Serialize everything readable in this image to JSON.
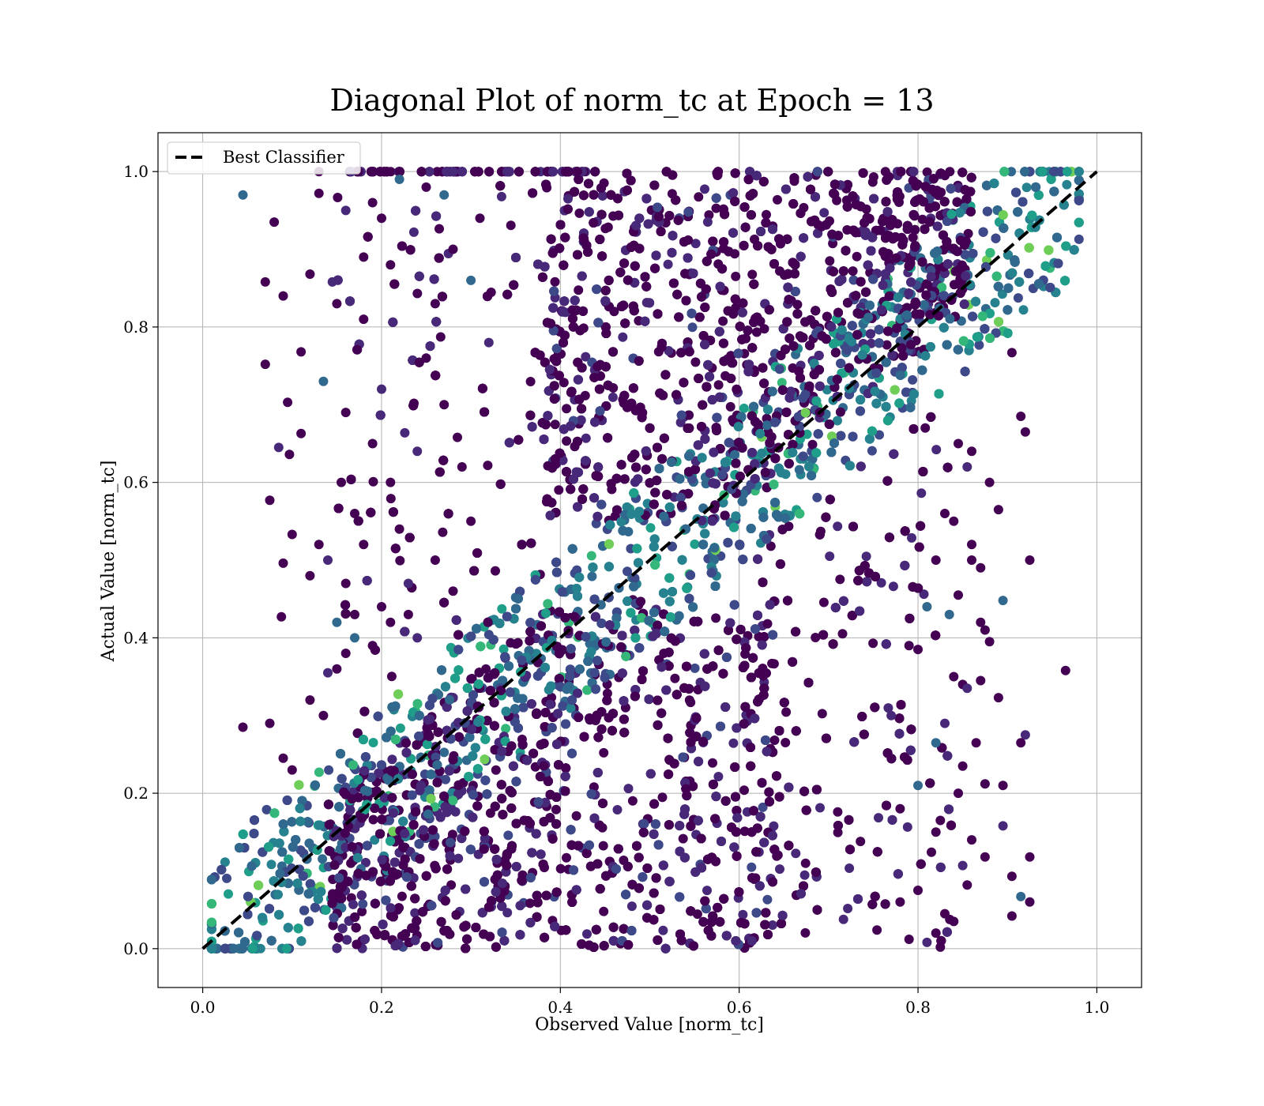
{
  "chart_data": {
    "type": "scatter",
    "title": "Diagonal Plot of norm_tc at Epoch = 13",
    "xlabel": "Observed Value [norm_tc]",
    "ylabel": "Actual Value [norm_tc]",
    "xlim": [
      -0.05,
      1.05
    ],
    "ylim": [
      -0.05,
      1.05
    ],
    "xticks": [
      0.0,
      0.2,
      0.4,
      0.6,
      0.8,
      1.0
    ],
    "yticks": [
      0.0,
      0.2,
      0.4,
      0.6,
      0.8,
      1.0
    ],
    "xtick_labels": [
      "0.0",
      "0.2",
      "0.4",
      "0.6",
      "0.8",
      "1.0"
    ],
    "ytick_labels": [
      "0.0",
      "0.2",
      "0.4",
      "0.6",
      "0.8",
      "1.0"
    ],
    "grid": true,
    "colormap": "viridis",
    "legend": {
      "placement": "upper-left",
      "entries": [
        {
          "label": "Best Classifier",
          "style": "dashed",
          "color": "#000000"
        }
      ]
    },
    "reference_line": {
      "name": "Best Classifier",
      "x": [
        0.0,
        1.0
      ],
      "y": [
        0.0,
        1.0
      ],
      "color": "#000000",
      "style": "dashed"
    },
    "series": [
      {
        "type": "scatter",
        "color_scale": [
          "#440154",
          "#482878",
          "#3e4989",
          "#31688e",
          "#26828e",
          "#1f9e89",
          "#35b779",
          "#6ece58",
          "#b5de2b",
          "#fde725"
        ],
        "points": [
          [
            0.045,
            0.97
          ],
          [
            0.13,
            1.0
          ],
          [
            0.08,
            0.935
          ],
          [
            0.13,
            0.972
          ],
          [
            0.07,
            0.858
          ],
          [
            0.09,
            0.84
          ],
          [
            0.12,
            0.868
          ],
          [
            0.145,
            0.858
          ],
          [
            0.07,
            0.752
          ],
          [
            0.11,
            0.768
          ],
          [
            0.095,
            0.703
          ],
          [
            0.135,
            0.73
          ],
          [
            0.11,
            0.663
          ],
          [
            0.097,
            0.636
          ],
          [
            0.085,
            0.645
          ],
          [
            0.075,
            0.577
          ],
          [
            0.09,
            0.496
          ],
          [
            0.1,
            0.533
          ],
          [
            0.088,
            0.427
          ],
          [
            0.12,
            0.48
          ],
          [
            0.13,
            0.52
          ],
          [
            0.14,
            0.5
          ],
          [
            0.15,
            0.42
          ],
          [
            0.16,
            0.47
          ],
          [
            0.17,
            0.43
          ],
          [
            0.155,
            0.6
          ],
          [
            0.16,
            0.69
          ],
          [
            0.15,
            0.83
          ],
          [
            0.16,
            0.95
          ],
          [
            0.18,
            0.89
          ],
          [
            0.19,
            0.96
          ],
          [
            0.2,
            0.94
          ],
          [
            0.21,
            0.88
          ],
          [
            0.22,
            0.99
          ],
          [
            0.18,
            0.81
          ],
          [
            0.2,
            0.72
          ],
          [
            0.19,
            0.65
          ],
          [
            0.21,
            0.6
          ],
          [
            0.22,
            0.54
          ],
          [
            0.17,
            0.56
          ],
          [
            0.18,
            0.52
          ],
          [
            0.2,
            0.44
          ],
          [
            0.23,
            0.47
          ],
          [
            0.25,
            0.98
          ],
          [
            0.27,
            0.97
          ],
          [
            0.28,
            0.9
          ],
          [
            0.26,
            0.83
          ],
          [
            0.25,
            0.76
          ],
          [
            0.27,
            0.7
          ],
          [
            0.24,
            0.64
          ],
          [
            0.29,
            0.62
          ],
          [
            0.3,
            0.55
          ],
          [
            0.26,
            0.5
          ],
          [
            0.28,
            0.46
          ],
          [
            0.31,
            0.94
          ],
          [
            0.3,
            0.86
          ],
          [
            0.32,
            0.78
          ],
          [
            0.045,
            0.285
          ],
          [
            0.075,
            0.29
          ],
          [
            0.09,
            0.245
          ],
          [
            0.1,
            0.23
          ],
          [
            0.12,
            0.32
          ],
          [
            0.135,
            0.3
          ],
          [
            0.14,
            0.355
          ],
          [
            0.15,
            0.36
          ],
          [
            0.16,
            0.38
          ],
          [
            0.17,
            0.4
          ],
          [
            0.19,
            0.39
          ],
          [
            0.21,
            0.42
          ],
          [
            0.23,
            0.43
          ],
          [
            0.24,
            0.4
          ],
          [
            0.965,
            0.358
          ],
          [
            0.925,
            0.5
          ],
          [
            0.915,
            0.685
          ],
          [
            0.92,
            0.665
          ],
          [
            0.905,
            0.767
          ],
          [
            0.89,
            0.565
          ],
          [
            0.895,
            0.448
          ],
          [
            0.875,
            0.41
          ],
          [
            0.89,
            0.323
          ],
          [
            0.87,
            0.345
          ],
          [
            0.86,
            0.5
          ],
          [
            0.87,
            0.49
          ],
          [
            0.88,
            0.6
          ],
          [
            0.92,
            0.275
          ],
          [
            0.915,
            0.265
          ],
          [
            0.925,
            0.118
          ],
          [
            0.905,
            0.093
          ],
          [
            0.915,
            0.067
          ],
          [
            0.925,
            0.06
          ],
          [
            0.905,
            0.042
          ],
          [
            0.895,
            0.158
          ],
          [
            0.895,
            0.21
          ],
          [
            0.875,
            0.212
          ],
          [
            0.875,
            0.118
          ],
          [
            0.865,
            0.265
          ],
          [
            0.85,
            0.34
          ],
          [
            0.84,
            0.35
          ],
          [
            0.83,
            0.29
          ],
          [
            0.82,
            0.265
          ],
          [
            0.825,
            0.165
          ],
          [
            0.82,
            0.15
          ],
          [
            0.83,
            0.045
          ],
          [
            0.825,
            0.002
          ],
          [
            0.82,
            0.02
          ],
          [
            0.81,
            0.008
          ],
          [
            0.8,
            0.075
          ],
          [
            0.815,
            0.124
          ],
          [
            0.79,
            0.012
          ],
          [
            0.78,
            0.06
          ],
          [
            0.8,
            0.21
          ],
          [
            0.78,
            0.18
          ],
          [
            0.77,
            0.3
          ],
          [
            0.79,
            0.39
          ],
          [
            0.8,
            0.385
          ],
          [
            0.85,
            0.235
          ],
          [
            0.845,
            0.2
          ],
          [
            0.86,
            0.14
          ],
          [
            0.855,
            0.082
          ],
          [
            0.85,
            0.107
          ],
          [
            0.84,
            0.035
          ],
          [
            0.81,
            0.44
          ],
          [
            0.82,
            0.5
          ],
          [
            0.83,
            0.56
          ],
          [
            0.84,
            0.55
          ],
          [
            0.845,
            0.65
          ],
          [
            0.855,
            0.62
          ],
          [
            0.86,
            0.64
          ],
          [
            0.86,
            0.52
          ],
          [
            0.87,
            0.42
          ],
          [
            0.88,
            0.395
          ],
          [
            0.845,
            0.455
          ],
          [
            0.835,
            0.43
          ],
          [
            0.855,
            0.335
          ]
        ]
      }
    ]
  }
}
